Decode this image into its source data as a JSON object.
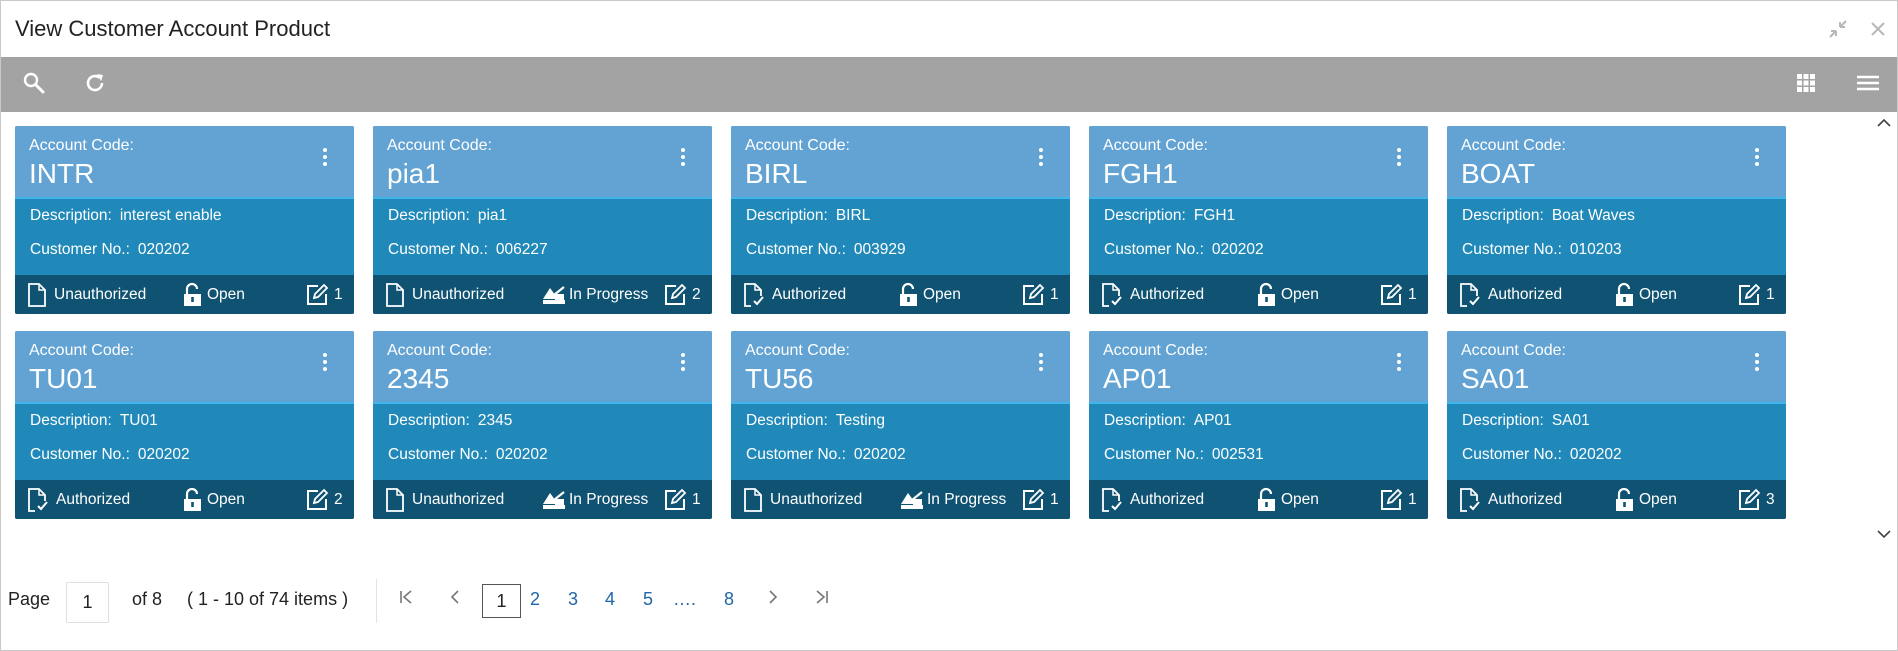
{
  "window": {
    "title": "View Customer Account Product"
  },
  "labels": {
    "account_code": "Account Code:",
    "description": "Description:",
    "customer_no": "Customer No.:"
  },
  "colors": {
    "card_header": "#62a3d4",
    "card_body": "#2089b9",
    "card_footer": "#0f5272",
    "toolbar": "#a3a3a3",
    "link": "#1f66a8"
  },
  "icons": {
    "toolbar": [
      "search-icon",
      "refresh-icon",
      "grid-view-icon",
      "list-view-icon"
    ],
    "window": [
      "minimize-icon",
      "close-icon"
    ]
  },
  "cards": [
    {
      "code": "INTR",
      "description": "interest enable",
      "customer_no": "020202",
      "auth": "Unauthorized",
      "status": "Open",
      "count": "1"
    },
    {
      "code": "pia1",
      "description": "pia1",
      "customer_no": "006227",
      "auth": "Unauthorized",
      "status": "In Progress",
      "count": "2"
    },
    {
      "code": "BIRL",
      "description": "BIRL",
      "customer_no": "003929",
      "auth": "Authorized",
      "status": "Open",
      "count": "1"
    },
    {
      "code": "FGH1",
      "description": "FGH1",
      "customer_no": "020202",
      "auth": "Authorized",
      "status": "Open",
      "count": "1"
    },
    {
      "code": "BOAT",
      "description": "Boat Waves",
      "customer_no": "010203",
      "auth": "Authorized",
      "status": "Open",
      "count": "1"
    },
    {
      "code": "TU01",
      "description": "TU01",
      "customer_no": "020202",
      "auth": "Authorized",
      "status": "Open",
      "count": "2"
    },
    {
      "code": "2345",
      "description": "2345",
      "customer_no": "020202",
      "auth": "Unauthorized",
      "status": "In Progress",
      "count": "1"
    },
    {
      "code": "TU56",
      "description": "Testing",
      "customer_no": "020202",
      "auth": "Unauthorized",
      "status": "In Progress",
      "count": "1"
    },
    {
      "code": "AP01",
      "description": "AP01",
      "customer_no": "002531",
      "auth": "Authorized",
      "status": "Open",
      "count": "1"
    },
    {
      "code": "SA01",
      "description": "SA01",
      "customer_no": "020202",
      "auth": "Authorized",
      "status": "Open",
      "count": "3"
    }
  ],
  "pagination": {
    "page_label": "Page",
    "current_page": "1",
    "of_text": "of 8",
    "items_text": "( 1 - 10 of 74 items )",
    "pages": [
      "1",
      "2",
      "3",
      "4",
      "5"
    ],
    "ellipsis": "….",
    "last_page": "8"
  }
}
